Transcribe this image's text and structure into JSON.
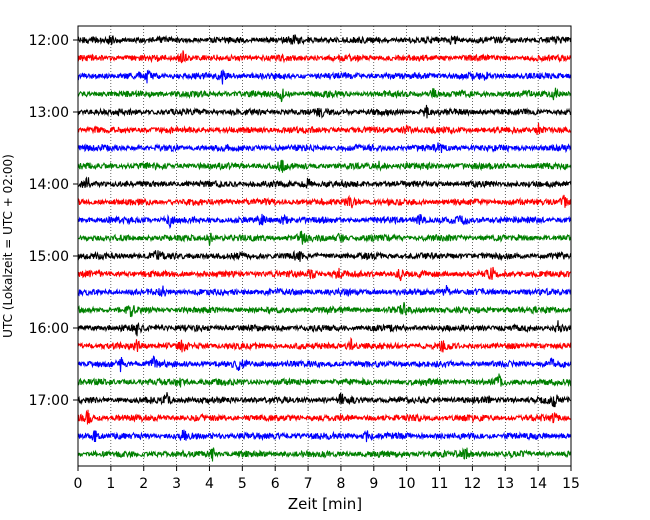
{
  "chart_data": {
    "type": "line",
    "title": "",
    "xlabel": "Zeit  [min]",
    "ylabel": "UTC (Lokalzeit = UTC + 02:00)",
    "xlim": [
      0,
      15
    ],
    "x_ticks": [
      0,
      1,
      2,
      3,
      4,
      5,
      6,
      7,
      8,
      9,
      10,
      11,
      12,
      13,
      14,
      15
    ],
    "x_tick_labels": [
      "0",
      "1",
      "2",
      "3",
      "4",
      "5",
      "6",
      "7",
      "8",
      "9",
      "10",
      "11",
      "12",
      "13",
      "14",
      "15"
    ],
    "y_tick_labels": [
      "12:00",
      "13:00",
      "14:00",
      "15:00",
      "16:00",
      "17:00"
    ],
    "trace_minutes": 15,
    "grid": "vertical dotted lines at each minute",
    "trace_color_cycle": [
      "#000000",
      "#ff0000",
      "#0000ff",
      "#008000"
    ],
    "series": [
      {
        "start": "12:00",
        "color": "#000000",
        "events_min": [
          1.0,
          6.6,
          11.4
        ]
      },
      {
        "start": "12:15",
        "color": "#ff0000",
        "events_min": [
          3.2
        ]
      },
      {
        "start": "12:30",
        "color": "#0000ff",
        "events_min": [
          2.1,
          4.4,
          12.4
        ]
      },
      {
        "start": "12:45",
        "color": "#008000",
        "events_min": [
          6.2,
          10.8,
          14.5
        ]
      },
      {
        "start": "13:00",
        "color": "#000000",
        "events_min": [
          7.4,
          10.6
        ]
      },
      {
        "start": "13:15",
        "color": "#ff0000",
        "events_min": [
          10.0,
          14.0
        ]
      },
      {
        "start": "13:30",
        "color": "#0000ff",
        "events_min": [
          11.0
        ]
      },
      {
        "start": "13:45",
        "color": "#008000",
        "events_min": [
          6.2,
          9.2
        ]
      },
      {
        "start": "14:00",
        "color": "#000000",
        "events_min": [
          0.3,
          7.0
        ]
      },
      {
        "start": "14:15",
        "color": "#ff0000",
        "events_min": [
          8.3,
          14.8
        ]
      },
      {
        "start": "14:30",
        "color": "#0000ff",
        "events_min": [
          2.8,
          5.6,
          6.3,
          10.4,
          11.7
        ]
      },
      {
        "start": "14:45",
        "color": "#008000",
        "events_min": [
          4.0,
          6.8,
          8.0
        ]
      },
      {
        "start": "15:00",
        "color": "#000000",
        "events_min": [
          2.4,
          6.7
        ]
      },
      {
        "start": "15:15",
        "color": "#ff0000",
        "events_min": [
          7.1,
          7.9,
          9.8,
          12.6
        ]
      },
      {
        "start": "15:30",
        "color": "#0000ff",
        "events_min": [
          2.6,
          11.2
        ]
      },
      {
        "start": "15:45",
        "color": "#008000",
        "events_min": [
          1.6,
          9.9
        ]
      },
      {
        "start": "16:00",
        "color": "#000000",
        "events_min": [
          1.8,
          14.6
        ]
      },
      {
        "start": "16:15",
        "color": "#ff0000",
        "events_min": [
          1.8,
          3.2,
          8.3,
          11.1
        ]
      },
      {
        "start": "16:30",
        "color": "#0000ff",
        "events_min": [
          1.3,
          2.3,
          4.9,
          14.4
        ]
      },
      {
        "start": "16:45",
        "color": "#008000",
        "events_min": [
          3.1,
          12.8
        ]
      },
      {
        "start": "17:00",
        "color": "#000000",
        "events_min": [
          2.7,
          8.0,
          14.5
        ]
      },
      {
        "start": "17:15",
        "color": "#ff0000",
        "events_min": [
          0.3,
          14.5
        ]
      },
      {
        "start": "17:30",
        "color": "#0000ff",
        "events_min": [
          0.5,
          3.2,
          8.8
        ]
      },
      {
        "start": "17:45",
        "color": "#008000",
        "events_min": [
          4.1,
          11.8
        ]
      }
    ]
  }
}
